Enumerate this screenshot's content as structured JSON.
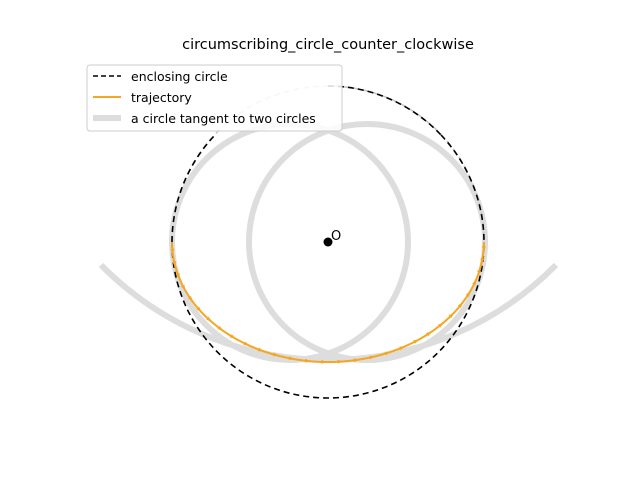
{
  "title": "circumscribing_circle_counter_clockwise",
  "center_label": "O",
  "legend": {
    "enclosing_circle": "enclosing circle",
    "trajectory": "trajectory",
    "tangent_circle": "a circle tangent to two circles"
  },
  "colors": {
    "enclosing_circle": "#000000",
    "trajectory": "#f5a623",
    "tangent_circle": "#dddddd",
    "center_point": "#000000"
  },
  "chart_data": {
    "type": "diagram",
    "legend_placement": "top-left",
    "grid": false,
    "axes_visible": false
  }
}
